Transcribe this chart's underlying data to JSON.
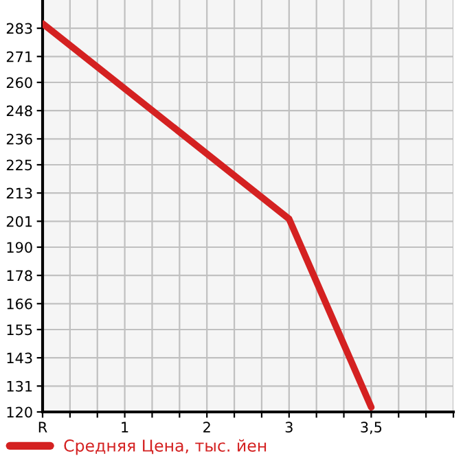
{
  "chart_data": {
    "type": "line",
    "categories": [
      "R",
      null,
      null,
      "1",
      null,
      null,
      "2",
      null,
      null,
      "3",
      null,
      null,
      "3,5",
      null,
      null,
      null
    ],
    "series": [
      {
        "name": "Средняя Цена, тыс. йен",
        "color": "#d42121",
        "values": [
          285,
          null,
          null,
          null,
          null,
          null,
          null,
          null,
          null,
          202,
          null,
          null,
          122,
          null,
          null,
          null
        ]
      }
    ],
    "ylim": [
      120,
      295
    ],
    "yticks": [
      120,
      131,
      143,
      155,
      166,
      178,
      190,
      201,
      213,
      225,
      236,
      248,
      260,
      271,
      283
    ],
    "grid": true,
    "legend": "bottom left",
    "marker": "none",
    "line_style": "solid"
  }
}
